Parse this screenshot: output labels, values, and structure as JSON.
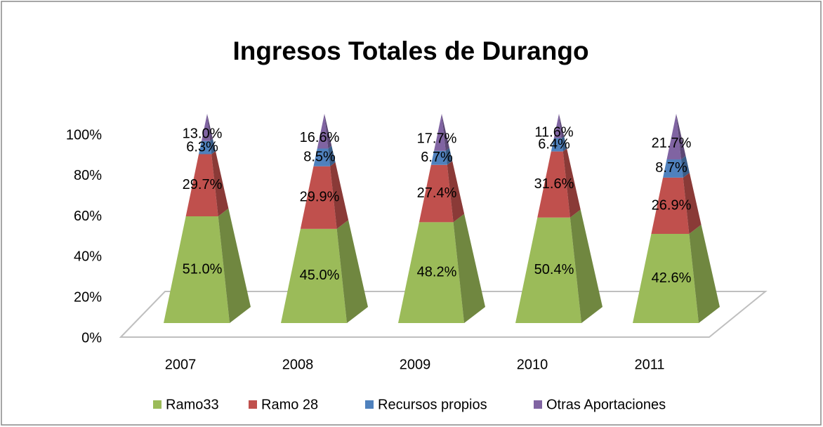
{
  "chart_data": {
    "type": "bar",
    "shape": "pyramid",
    "stacked": true,
    "title": "Ingresos Totales de Durango",
    "categories": [
      "2007",
      "2008",
      "2009",
      "2010",
      "2011"
    ],
    "ylim": [
      0,
      100
    ],
    "yticks": [
      {
        "value": 0,
        "label": "0%"
      },
      {
        "value": 20,
        "label": "20%"
      },
      {
        "value": 40,
        "label": "40%"
      },
      {
        "value": 60,
        "label": "60%"
      },
      {
        "value": 80,
        "label": "80%"
      },
      {
        "value": 100,
        "label": "100%"
      }
    ],
    "legend": "bottom",
    "series": [
      {
        "name": "Ramo33",
        "color": "#9bbb59",
        "values": [
          51,
          45,
          48.2,
          50.4,
          42.6
        ],
        "value_labels": [
          "51.0%",
          "45.0%",
          "48.2%",
          "50.4%",
          "42.6%"
        ]
      },
      {
        "name": "Ramo 28",
        "color": "#c0504d",
        "values": [
          29.7,
          29.9,
          27.4,
          31.6,
          26.9
        ],
        "value_labels": [
          "29.7%",
          "29.9%",
          "27.4%",
          "31.6%",
          "26.9%"
        ]
      },
      {
        "name": "Recursos propios",
        "color": "#4f81bd",
        "values": [
          6.3,
          8.5,
          6.7,
          6.4,
          8.7
        ],
        "value_labels": [
          "6.3%",
          "8.5%",
          "6.7%",
          "6.4%",
          "8.7%"
        ]
      },
      {
        "name": "Otras Aportaciones",
        "color": "#8064a2",
        "values": [
          13,
          16.6,
          17.7,
          11.6,
          21.7
        ],
        "value_labels": [
          "13.0%",
          "16.6%",
          "17.7%",
          "11.6%",
          "21.7%"
        ]
      }
    ]
  }
}
